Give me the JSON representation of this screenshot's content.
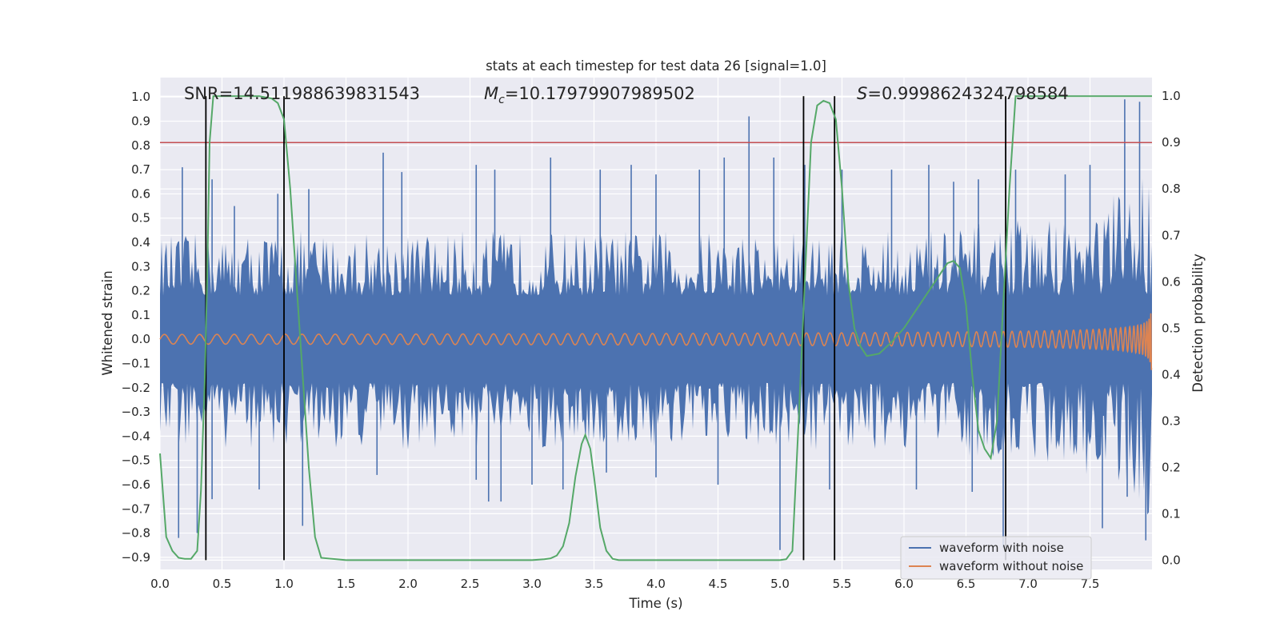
{
  "chart_data": {
    "type": "line",
    "title": "stats at each timestep for test data 26 [signal=1.0]",
    "xlabel": "Time (s)",
    "ylabel": "Whitened strain",
    "y2label": "Detection probability",
    "xlim": [
      0.0,
      8.0
    ],
    "ylim": [
      -0.95,
      1.08
    ],
    "y2lim": [
      -0.02,
      1.04
    ],
    "x_ticks": [
      "0.0",
      "0.5",
      "1.0",
      "1.5",
      "2.0",
      "2.5",
      "3.0",
      "3.5",
      "4.0",
      "4.5",
      "5.0",
      "5.5",
      "6.0",
      "6.5",
      "7.0",
      "7.5"
    ],
    "y_ticks": [
      "1.0",
      "0.9",
      "0.8",
      "0.7",
      "0.6",
      "0.5",
      "0.4",
      "0.3",
      "0.2",
      "0.1",
      "0.0",
      "-0.1",
      "-0.2",
      "-0.3",
      "-0.4",
      "-0.5",
      "-0.6",
      "-0.7",
      "-0.8",
      "-0.9"
    ],
    "y2_ticks": [
      "1.0",
      "0.9",
      "0.8",
      "0.7",
      "0.6",
      "0.5",
      "0.4",
      "0.3",
      "0.2",
      "0.1",
      "0.0"
    ],
    "grid": true,
    "background": "#eaeaf2",
    "annotations": {
      "snr": "SNR=14.511988639831543",
      "mc_symbol": "M",
      "mc_sub": "c",
      "mc_value": "=10.17979907989502",
      "s_symbol": "S",
      "s_value": "=0.9998624324798584"
    },
    "threshold": {
      "y2": 0.9,
      "color": "#c44e52"
    },
    "vertical_lines": [
      0.37,
      1.0,
      5.19,
      5.44,
      6.82
    ],
    "series": [
      {
        "name": "waveform with noise",
        "color": "#4c72b0",
        "envelope": {
          "x": [
            0.0,
            1.0,
            2.0,
            3.0,
            4.0,
            5.0,
            6.0,
            6.5,
            7.0,
            7.3,
            7.6,
            7.8,
            8.0
          ],
          "max": [
            0.43,
            0.45,
            0.45,
            0.45,
            0.45,
            0.45,
            0.45,
            0.48,
            0.5,
            0.53,
            0.58,
            0.65,
            0.8
          ],
          "min": [
            -0.45,
            -0.46,
            -0.46,
            -0.46,
            -0.46,
            -0.46,
            -0.46,
            -0.48,
            -0.5,
            -0.53,
            -0.58,
            -0.65,
            -0.75
          ]
        },
        "peaks": [
          [
            0.18,
            0.71
          ],
          [
            0.37,
            0.6
          ],
          [
            0.42,
            0.66
          ],
          [
            0.6,
            0.55
          ],
          [
            0.95,
            0.6
          ],
          [
            1.2,
            0.62
          ],
          [
            1.8,
            0.77
          ],
          [
            1.95,
            0.69
          ],
          [
            2.55,
            0.72
          ],
          [
            2.7,
            0.7
          ],
          [
            3.15,
            0.75
          ],
          [
            3.55,
            0.7
          ],
          [
            3.8,
            0.72
          ],
          [
            4.0,
            0.68
          ],
          [
            4.35,
            0.7
          ],
          [
            4.55,
            0.75
          ],
          [
            4.75,
            0.92
          ],
          [
            4.95,
            0.75
          ],
          [
            5.2,
            0.72
          ],
          [
            5.5,
            0.7
          ],
          [
            5.9,
            0.7
          ],
          [
            6.2,
            0.72
          ],
          [
            6.4,
            0.65
          ],
          [
            6.6,
            0.66
          ],
          [
            6.9,
            0.7
          ],
          [
            7.3,
            0.68
          ],
          [
            7.5,
            0.72
          ],
          [
            7.78,
            0.99
          ],
          [
            7.9,
            0.98
          ],
          [
            0.15,
            -0.82
          ],
          [
            0.3,
            -0.8
          ],
          [
            0.42,
            -0.66
          ],
          [
            0.8,
            -0.62
          ],
          [
            1.15,
            -0.77
          ],
          [
            1.75,
            -0.56
          ],
          [
            2.55,
            -0.58
          ],
          [
            2.65,
            -0.67
          ],
          [
            2.75,
            -0.67
          ],
          [
            3.0,
            -0.6
          ],
          [
            3.25,
            -0.62
          ],
          [
            3.6,
            -0.55
          ],
          [
            4.0,
            -0.57
          ],
          [
            4.5,
            -0.6
          ],
          [
            5.0,
            -0.87
          ],
          [
            5.4,
            -0.62
          ],
          [
            6.1,
            -0.62
          ],
          [
            6.55,
            -0.63
          ],
          [
            6.8,
            -0.86
          ],
          [
            7.6,
            -0.78
          ],
          [
            7.8,
            -0.65
          ],
          [
            7.95,
            -0.83
          ]
        ]
      },
      {
        "name": "waveform without noise",
        "color": "#dd8452",
        "chirp": {
          "t_end": 8.0,
          "f0": 7.0,
          "f_end": 110.0,
          "amp0": 0.02,
          "amp_end": 0.7
        }
      },
      {
        "name": "detection probability",
        "color": "#55a868",
        "axis": "y2",
        "x": [
          0.0,
          0.05,
          0.1,
          0.15,
          0.2,
          0.25,
          0.3,
          0.33,
          0.36,
          0.38,
          0.4,
          0.43,
          0.45,
          0.5,
          0.6,
          0.7,
          0.8,
          0.9,
          0.95,
          1.0,
          1.05,
          1.1,
          1.15,
          1.2,
          1.25,
          1.3,
          1.5,
          2.0,
          2.5,
          3.0,
          3.1,
          3.15,
          3.2,
          3.25,
          3.3,
          3.35,
          3.4,
          3.43,
          3.47,
          3.5,
          3.55,
          3.6,
          3.65,
          3.7,
          4.0,
          4.5,
          5.0,
          5.05,
          5.1,
          5.15,
          5.2,
          5.25,
          5.3,
          5.35,
          5.4,
          5.45,
          5.5,
          5.55,
          5.6,
          5.65,
          5.7,
          5.8,
          5.9,
          6.0,
          6.1,
          6.2,
          6.3,
          6.35,
          6.4,
          6.45,
          6.5,
          6.55,
          6.6,
          6.65,
          6.7,
          6.75,
          6.8,
          6.85,
          6.9,
          7.0,
          7.5,
          8.0
        ],
        "y": [
          0.23,
          0.05,
          0.02,
          0.005,
          0.003,
          0.003,
          0.02,
          0.15,
          0.38,
          0.6,
          0.9,
          1.0,
          1.0,
          1.0,
          1.0,
          1.0,
          1.0,
          0.995,
          0.985,
          0.95,
          0.8,
          0.6,
          0.4,
          0.2,
          0.05,
          0.005,
          0.0,
          0.0,
          0.0,
          0.0,
          0.002,
          0.004,
          0.01,
          0.03,
          0.08,
          0.18,
          0.25,
          0.27,
          0.24,
          0.18,
          0.07,
          0.02,
          0.003,
          0.0,
          0.0,
          0.0,
          0.0,
          0.002,
          0.02,
          0.3,
          0.6,
          0.9,
          0.98,
          0.99,
          0.985,
          0.95,
          0.8,
          0.6,
          0.5,
          0.46,
          0.44,
          0.445,
          0.47,
          0.5,
          0.54,
          0.58,
          0.62,
          0.64,
          0.645,
          0.63,
          0.55,
          0.4,
          0.28,
          0.24,
          0.22,
          0.3,
          0.55,
          0.8,
          1.0,
          1.0,
          1.0,
          1.0
        ]
      }
    ],
    "legend": {
      "placement": "lower-right",
      "entries": [
        {
          "label": "waveform with noise",
          "color": "#4c72b0"
        },
        {
          "label": "waveform without noise",
          "color": "#dd8452"
        }
      ]
    }
  }
}
